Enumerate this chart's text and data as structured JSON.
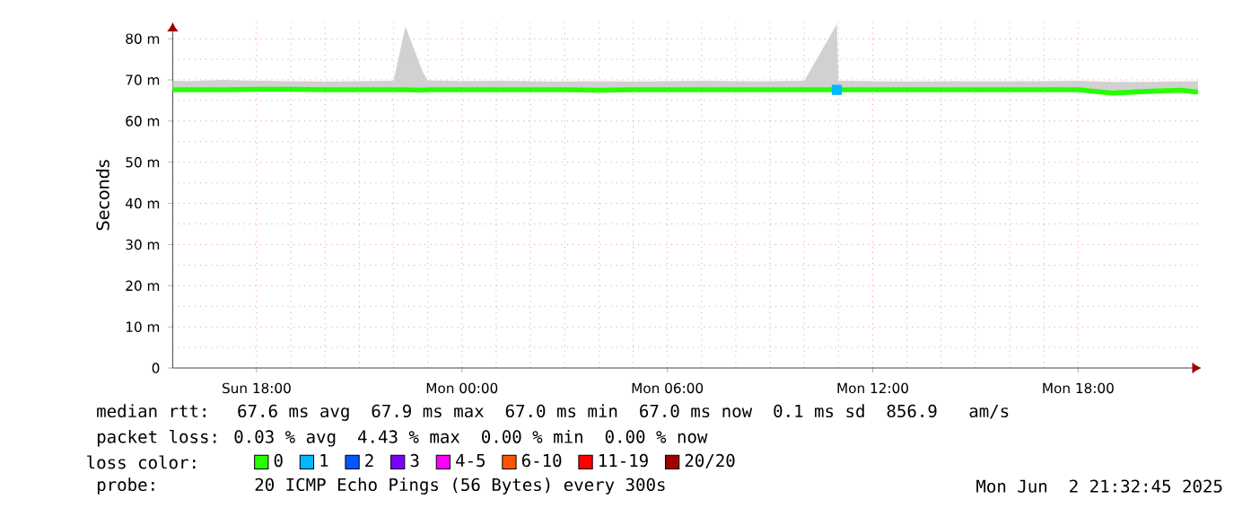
{
  "chart_data": {
    "type": "line",
    "ylabel": "Seconds",
    "legend_title": "loss color:",
    "annotations": [
      "median rtt:  67.6 ms avg  67.9 ms max  67.0 ms min  67.0 ms now  0.1 ms sd  856.9   am/s",
      "packet loss: 0.03 % avg  4.43 % max  0.00 % min  0.00 % now",
      "probe:       20 ICMP Echo Pings (56 Bytes) every 300s",
      "Mon Jun  2 21:32:45 2025"
    ],
    "x": [
      "2025-06-01T15:33",
      "2025-06-01T16:00",
      "2025-06-01T17:00",
      "2025-06-01T18:00",
      "2025-06-01T19:00",
      "2025-06-01T20:00",
      "2025-06-01T21:00",
      "2025-06-01T22:00",
      "2025-06-01T22:21",
      "2025-06-01T22:51",
      "2025-06-01T23:00",
      "2025-06-02T00:00",
      "2025-06-02T01:00",
      "2025-06-02T02:00",
      "2025-06-02T03:00",
      "2025-06-02T04:00",
      "2025-06-02T05:00",
      "2025-06-02T06:00",
      "2025-06-02T07:00",
      "2025-06-02T08:00",
      "2025-06-02T09:00",
      "2025-06-02T10:00",
      "2025-06-02T10:57",
      "2025-06-02T11:00",
      "2025-06-02T12:00",
      "2025-06-02T13:00",
      "2025-06-02T14:00",
      "2025-06-02T15:00",
      "2025-06-02T16:00",
      "2025-06-02T17:00",
      "2025-06-02T18:00",
      "2025-06-02T19:00",
      "2025-06-02T20:00",
      "2025-06-02T21:00",
      "2025-06-02T21:30"
    ],
    "xlim": [
      "2025-06-01T15:33",
      "2025-06-02T21:36"
    ],
    "xticks": [
      {
        "value": "2025-06-01T18:00",
        "label": "Sun 18:00"
      },
      {
        "value": "2025-06-02T00:00",
        "label": "Mon 00:00"
      },
      {
        "value": "2025-06-02T06:00",
        "label": "Mon 06:00"
      },
      {
        "value": "2025-06-02T12:00",
        "label": "Mon 12:00"
      },
      {
        "value": "2025-06-02T18:00",
        "label": "Mon 18:00"
      }
    ],
    "ylim": [
      0,
      84
    ],
    "yticks": [
      {
        "value": 0,
        "label": "0"
      },
      {
        "value": 10,
        "label": "10 m"
      },
      {
        "value": 20,
        "label": "20 m"
      },
      {
        "value": 30,
        "label": "30 m"
      },
      {
        "value": 40,
        "label": "40 m"
      },
      {
        "value": 50,
        "label": "50 m"
      },
      {
        "value": 60,
        "label": "60 m"
      },
      {
        "value": 70,
        "label": "70 m"
      },
      {
        "value": 80,
        "label": "80 m"
      }
    ],
    "grid": true,
    "legend": "bottom",
    "series": [
      {
        "name": "0",
        "color": "#26ff00",
        "values": [
          67.6,
          67.6,
          67.6,
          67.7,
          67.7,
          67.6,
          67.6,
          67.6,
          67.6,
          67.5,
          67.6,
          67.6,
          67.6,
          67.6,
          67.6,
          67.5,
          67.6,
          67.6,
          67.6,
          67.6,
          67.6,
          67.6,
          67.6,
          67.6,
          67.6,
          67.6,
          67.6,
          67.6,
          67.6,
          67.6,
          67.6,
          66.8,
          67.2,
          67.5,
          67.0
        ],
        "lower": [
          67.2,
          67.2,
          67.2,
          67.2,
          67.2,
          67.2,
          67.2,
          67.2,
          67.2,
          67.2,
          67.2,
          67.2,
          67.2,
          67.2,
          67.2,
          67.2,
          67.2,
          67.2,
          67.2,
          67.2,
          67.2,
          67.2,
          67.2,
          67.2,
          67.2,
          67.2,
          67.2,
          67.2,
          67.2,
          67.2,
          67.2,
          66.5,
          66.8,
          67.2,
          66.8
        ],
        "upper": [
          69.8,
          69.7,
          70.0,
          69.8,
          69.7,
          69.6,
          69.7,
          69.8,
          83,
          72,
          69.9,
          69.7,
          69.8,
          69.7,
          69.6,
          69.7,
          69.6,
          69.7,
          69.8,
          69.7,
          69.7,
          69.8,
          83.5,
          69.8,
          69.7,
          69.6,
          69.7,
          69.7,
          69.7,
          69.7,
          69.8,
          69.5,
          69.5,
          69.6,
          69.7
        ]
      },
      {
        "name": "1",
        "color": "#00b8ff",
        "type": "scatter",
        "marker": "square",
        "values": [
          null,
          null,
          null,
          null,
          null,
          null,
          null,
          null,
          null,
          null,
          null,
          null,
          null,
          null,
          null,
          null,
          null,
          null,
          null,
          null,
          null,
          null,
          67.6,
          null,
          null,
          null,
          null,
          null,
          null,
          null,
          null,
          null,
          null,
          null,
          null
        ]
      },
      {
        "name": "2",
        "color": "#0059ff",
        "values": [
          null,
          null,
          null,
          null,
          null,
          null,
          null,
          null,
          null,
          null,
          null,
          null,
          null,
          null,
          null,
          null,
          null,
          null,
          null,
          null,
          null,
          null,
          null,
          null,
          null,
          null,
          null,
          null,
          null,
          null,
          null,
          null,
          null,
          null,
          null
        ]
      },
      {
        "name": "3",
        "color": "#7e00ff",
        "values": [
          null,
          null,
          null,
          null,
          null,
          null,
          null,
          null,
          null,
          null,
          null,
          null,
          null,
          null,
          null,
          null,
          null,
          null,
          null,
          null,
          null,
          null,
          null,
          null,
          null,
          null,
          null,
          null,
          null,
          null,
          null,
          null,
          null,
          null,
          null
        ]
      },
      {
        "name": "4-5",
        "color": "#ff00ff",
        "values": [
          null,
          null,
          null,
          null,
          null,
          null,
          null,
          null,
          null,
          null,
          null,
          null,
          null,
          null,
          null,
          null,
          null,
          null,
          null,
          null,
          null,
          null,
          null,
          null,
          null,
          null,
          null,
          null,
          null,
          null,
          null,
          null,
          null,
          null,
          null
        ]
      },
      {
        "name": "6-10",
        "color": "#ff5500",
        "values": [
          null,
          null,
          null,
          null,
          null,
          null,
          null,
          null,
          null,
          null,
          null,
          null,
          null,
          null,
          null,
          null,
          null,
          null,
          null,
          null,
          null,
          null,
          null,
          null,
          null,
          null,
          null,
          null,
          null,
          null,
          null,
          null,
          null,
          null,
          null
        ]
      },
      {
        "name": "11-19",
        "color": "#ff0000",
        "values": [
          null,
          null,
          null,
          null,
          null,
          null,
          null,
          null,
          null,
          null,
          null,
          null,
          null,
          null,
          null,
          null,
          null,
          null,
          null,
          null,
          null,
          null,
          null,
          null,
          null,
          null,
          null,
          null,
          null,
          null,
          null,
          null,
          null,
          null,
          null
        ]
      },
      {
        "name": "20/20",
        "color": "#a10000",
        "values": [
          null,
          null,
          null,
          null,
          null,
          null,
          null,
          null,
          null,
          null,
          null,
          null,
          null,
          null,
          null,
          null,
          null,
          null,
          null,
          null,
          null,
          null,
          null,
          null,
          null,
          null,
          null,
          null,
          null,
          null,
          null,
          null,
          null,
          null,
          null
        ]
      }
    ]
  }
}
